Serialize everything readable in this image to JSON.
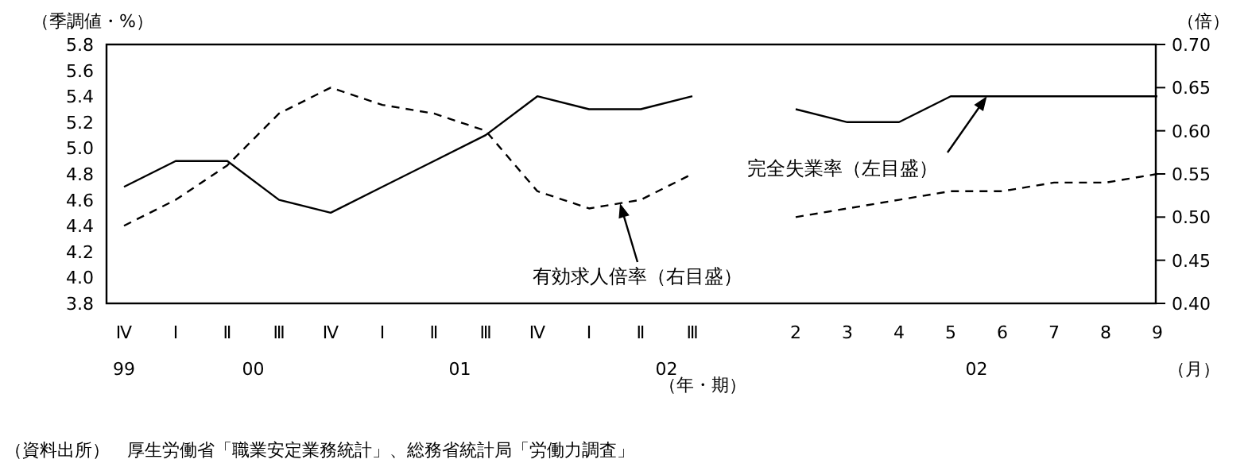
{
  "chart_data": {
    "type": "line",
    "ylabel": "（季調値・%）",
    "y2label": "（倍）",
    "categories": [
      "Ⅳ",
      "Ⅰ",
      "Ⅱ",
      "Ⅲ",
      "Ⅳ",
      "Ⅰ",
      "Ⅱ",
      "Ⅲ",
      "Ⅳ",
      "Ⅰ",
      "Ⅱ",
      "Ⅲ",
      null,
      "2",
      "3",
      "4",
      "5",
      "6",
      "7",
      "8",
      "9"
    ],
    "series": [
      {
        "color": "#000000",
        "line_style": "solid",
        "values": [
          4.7,
          4.9,
          4.9,
          4.6,
          4.5,
          4.7,
          4.9,
          5.1,
          5.4,
          5.3,
          5.3,
          5.4,
          null,
          5.3,
          5.2,
          5.2,
          5.4,
          5.4,
          5.4,
          5.4,
          5.4
        ]
      },
      {
        "color": "#000000",
        "line_style": "dashed",
        "axis": "y2",
        "values": [
          0.49,
          0.52,
          0.56,
          0.62,
          0.65,
          0.63,
          0.62,
          0.6,
          0.53,
          0.51,
          0.52,
          0.55,
          null,
          0.5,
          0.51,
          0.52,
          0.53,
          0.53,
          0.54,
          0.54,
          0.55
        ]
      }
    ],
    "ylim": [
      3.8,
      5.8
    ],
    "yticks": [
      {
        "value": 3.8,
        "label": "3.8"
      },
      {
        "value": 4.0,
        "label": "4.0"
      },
      {
        "value": 4.2,
        "label": "4.2"
      },
      {
        "value": 4.4,
        "label": "4.4"
      },
      {
        "value": 4.6,
        "label": "4.6"
      },
      {
        "value": 4.8,
        "label": "4.8"
      },
      {
        "value": 5.0,
        "label": "5.0"
      },
      {
        "value": 5.2,
        "label": "5.2"
      },
      {
        "value": 5.4,
        "label": "5.4"
      },
      {
        "value": 5.6,
        "label": "5.6"
      },
      {
        "value": 5.8,
        "label": "5.8"
      }
    ],
    "y2lim": [
      0.4,
      0.7
    ],
    "y2ticks": [
      {
        "value": 0.4,
        "label": "0.40"
      },
      {
        "value": 0.45,
        "label": "0.45"
      },
      {
        "value": 0.5,
        "label": "0.50"
      },
      {
        "value": 0.55,
        "label": "0.55"
      },
      {
        "value": 0.6,
        "label": "0.60"
      },
      {
        "value": 0.65,
        "label": "0.65"
      },
      {
        "value": 0.7,
        "label": "0.70"
      }
    ],
    "grid": false,
    "annotations": [
      "完全失業率（左目盛）",
      "有効求人倍率（右目盛）",
      "99",
      "00",
      "01",
      "02",
      "02",
      "（年・期）",
      "（月）",
      "（資料出所）　厚生労働省「職業安定業務統計」、総務省統計局「労働力調査」"
    ]
  }
}
